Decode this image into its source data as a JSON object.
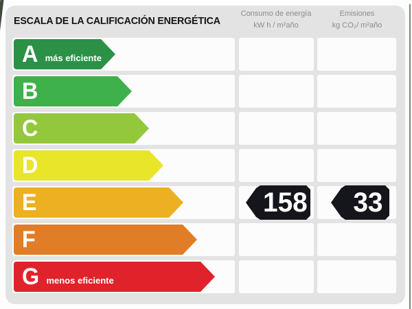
{
  "header": {
    "title": "ESCALA DE LA CALIFICACIÓN ENERGÉTICA",
    "columns": [
      {
        "line1": "Consumo de energía",
        "line2": "kW h / m²año"
      },
      {
        "line1": "Emisiones",
        "line2": "kg CO₂/ m²año"
      }
    ]
  },
  "ratings": [
    {
      "letter": "A",
      "note": "más eficiente",
      "color": "#2B9146",
      "arrow_width": 148
    },
    {
      "letter": "B",
      "note": "",
      "color": "#3FB14B",
      "arrow_width": 172
    },
    {
      "letter": "C",
      "note": "",
      "color": "#93C83D",
      "arrow_width": 197
    },
    {
      "letter": "D",
      "note": "",
      "color": "#E9E528",
      "arrow_width": 218
    },
    {
      "letter": "E",
      "note": "",
      "color": "#EDB022",
      "arrow_width": 247
    },
    {
      "letter": "F",
      "note": "",
      "color": "#E17D27",
      "arrow_width": 267
    },
    {
      "letter": "G",
      "note": "menos eficiente",
      "color": "#E0232A",
      "arrow_width": 293
    }
  ],
  "values": {
    "rated_letter": "E",
    "consumo": "158",
    "emisiones": "33",
    "badge_color": "#15151C"
  },
  "chart_data": {
    "type": "bar",
    "title": "ESCALA DE LA CALIFICACIÓN ENERGÉTICA",
    "categories": [
      "A",
      "B",
      "C",
      "D",
      "E",
      "F",
      "G"
    ],
    "values": [
      148,
      172,
      197,
      218,
      247,
      267,
      293
    ],
    "bar_colors": [
      "#2B9146",
      "#3FB14B",
      "#93C83D",
      "#E9E528",
      "#EDB022",
      "#E17D27",
      "#E0232A"
    ],
    "annotations": [
      "A = más eficiente",
      "G = menos eficiente"
    ],
    "rated_category": "E",
    "columns": [
      "Consumo de energía kW h / m²año",
      "Emisiones kg CO₂/ m²año"
    ],
    "consumo_kwh_m2ano": 158,
    "emisiones_kgco2_m2ano": 33,
    "orientation": "horizontal",
    "grid": false,
    "legend": false
  }
}
